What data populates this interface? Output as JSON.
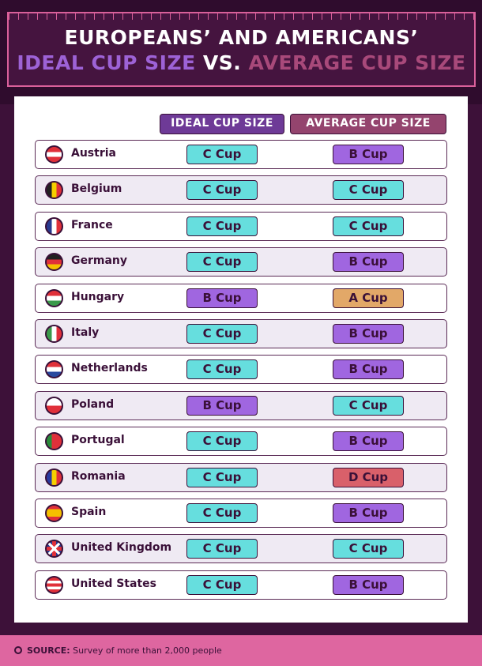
{
  "title": {
    "line1": "EUROPEANS’ AND AMERICANS’",
    "ideal": "IDEAL CUP SIZE",
    "vs": "VS.",
    "average": "AVERAGE CUP SIZE"
  },
  "headers": {
    "ideal": "IDEAL CUP SIZE",
    "average": "AVERAGE CUP SIZE"
  },
  "colors": {
    "A": "#e2a868",
    "B": "#a066e0",
    "C": "#66dede",
    "D": "#d9606a"
  },
  "rows": [
    {
      "country": "Austria",
      "ideal": "C Cup",
      "average": "B Cup",
      "flag": [
        "#e0303a",
        "#fff",
        "#e0303a"
      ]
    },
    {
      "country": "Belgium",
      "ideal": "C Cup",
      "average": "C Cup",
      "flag": [
        "#222",
        "#f5d000",
        "#e0303a"
      ],
      "vertical": true
    },
    {
      "country": "France",
      "ideal": "C Cup",
      "average": "C Cup",
      "flag": [
        "#2a3a8f",
        "#fff",
        "#e0303a"
      ],
      "vertical": true
    },
    {
      "country": "Germany",
      "ideal": "C Cup",
      "average": "B Cup",
      "flag": [
        "#222",
        "#e0303a",
        "#f5c000"
      ]
    },
    {
      "country": "Hungary",
      "ideal": "B Cup",
      "average": "A Cup",
      "flag": [
        "#e0303a",
        "#fff",
        "#3a9a4a"
      ]
    },
    {
      "country": "Italy",
      "ideal": "C Cup",
      "average": "B Cup",
      "flag": [
        "#3a9a4a",
        "#fff",
        "#e0303a"
      ],
      "vertical": true
    },
    {
      "country": "Netherlands",
      "ideal": "C Cup",
      "average": "B Cup",
      "flag": [
        "#e0303a",
        "#fff",
        "#2a4a9f"
      ]
    },
    {
      "country": "Poland",
      "ideal": "B Cup",
      "average": "C Cup",
      "flag": [
        "#fff",
        "#e0303a"
      ]
    },
    {
      "country": "Portugal",
      "ideal": "C Cup",
      "average": "B Cup",
      "flag": [
        "#2a8a3a",
        "#e0303a",
        "#e0303a"
      ],
      "vertical": true
    },
    {
      "country": "Romania",
      "ideal": "C Cup",
      "average": "D Cup",
      "flag": [
        "#2a3a9f",
        "#f5d000",
        "#e0303a"
      ],
      "vertical": true
    },
    {
      "country": "Spain",
      "ideal": "C Cup",
      "average": "B Cup",
      "flag": [
        "#e0303a",
        "#f5c000",
        "#f5c000",
        "#e0303a"
      ]
    },
    {
      "country": "United Kingdom",
      "ideal": "C Cup",
      "average": "C Cup",
      "flag": [
        "#2a3a8f"
      ]
    },
    {
      "country": "United States",
      "ideal": "C Cup",
      "average": "B Cup",
      "flag": [
        "#e0303a",
        "#fff",
        "#e0303a",
        "#fff",
        "#e0303a"
      ]
    }
  ],
  "footer": {
    "label": "SOURCE:",
    "text": "Survey of more than 2,000 people"
  }
}
